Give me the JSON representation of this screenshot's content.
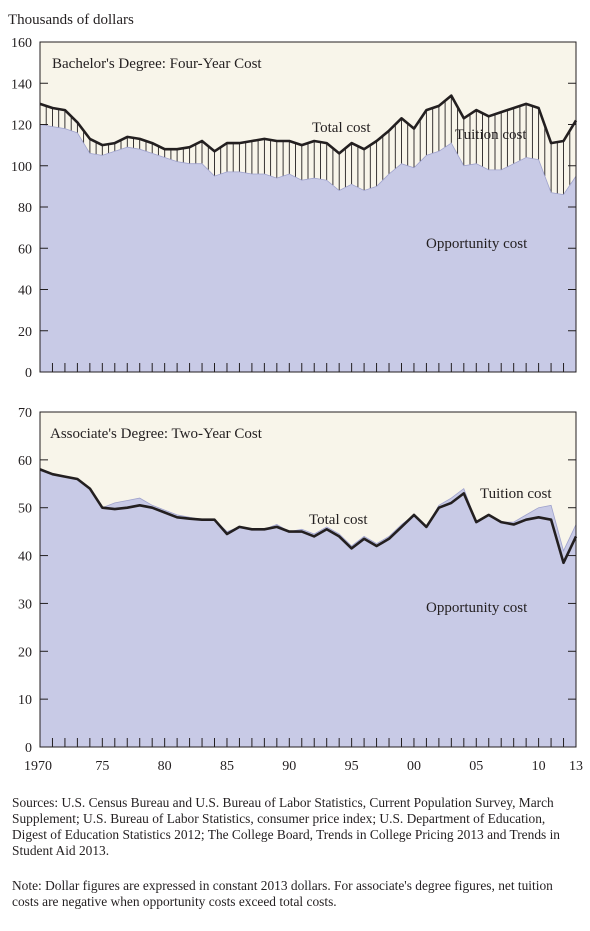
{
  "figure": {
    "y_unit_label": "Thousands of dollars",
    "x_tick_labels": [
      "1970",
      "75",
      "80",
      "85",
      "90",
      "95",
      "00",
      "05",
      "10",
      "13"
    ]
  },
  "colors": {
    "background": "#f8f5ea",
    "opportunity_fill": "#c8cae6",
    "total_line": "#231f20",
    "hatch_line": "#231f20"
  },
  "chart_data": [
    {
      "type": "area",
      "title": "Bachelor's Degree: Four-Year Cost",
      "ylabel": "Thousands of dollars",
      "ylim": [
        0,
        160
      ],
      "yticks": [
        0,
        20,
        40,
        60,
        80,
        100,
        120,
        140,
        160
      ],
      "grid": false,
      "annotations": [
        "Total cost",
        "Tuition cost",
        "Opportunity cost"
      ],
      "x": [
        1970,
        1971,
        1972,
        1973,
        1974,
        1975,
        1976,
        1977,
        1978,
        1979,
        1980,
        1981,
        1982,
        1983,
        1984,
        1985,
        1986,
        1987,
        1988,
        1989,
        1990,
        1991,
        1992,
        1993,
        1994,
        1995,
        1996,
        1997,
        1998,
        1999,
        2000,
        2001,
        2002,
        2003,
        2004,
        2005,
        2006,
        2007,
        2008,
        2009,
        2010,
        2011,
        2012,
        2013
      ],
      "series": [
        {
          "name": "Total cost",
          "values": [
            130,
            128,
            127,
            121,
            113,
            110,
            111,
            114,
            113,
            111,
            108,
            108,
            109,
            112,
            107,
            111,
            111,
            112,
            113,
            112,
            112,
            110,
            112,
            111,
            106,
            111,
            108,
            112,
            117,
            123,
            118,
            127,
            129,
            134,
            123,
            127,
            124,
            126,
            128,
            130,
            128,
            111,
            112,
            122
          ]
        },
        {
          "name": "Opportunity cost",
          "values": [
            120,
            119,
            118,
            116,
            106,
            105,
            107,
            109,
            108,
            106,
            104,
            102,
            101,
            101,
            95,
            97,
            97,
            96,
            96,
            94,
            96,
            93,
            94,
            93,
            88,
            91,
            88,
            90,
            96,
            101,
            99,
            105,
            107,
            111,
            100,
            101,
            98,
            98,
            101,
            104,
            103,
            87,
            86,
            95
          ]
        }
      ]
    },
    {
      "type": "area",
      "title": "Associate's Degree: Two-Year Cost",
      "ylabel": "Thousands of dollars",
      "ylim": [
        0,
        70
      ],
      "yticks": [
        0,
        10,
        20,
        30,
        40,
        50,
        60,
        70
      ],
      "grid": false,
      "annotations": [
        "Total cost",
        "Tuition cost",
        "Opportunity cost"
      ],
      "x": [
        1970,
        1971,
        1972,
        1973,
        1974,
        1975,
        1976,
        1977,
        1978,
        1979,
        1980,
        1981,
        1982,
        1983,
        1984,
        1985,
        1986,
        1987,
        1988,
        1989,
        1990,
        1991,
        1992,
        1993,
        1994,
        1995,
        1996,
        1997,
        1998,
        1999,
        2000,
        2001,
        2002,
        2003,
        2004,
        2005,
        2006,
        2007,
        2008,
        2009,
        2010,
        2011,
        2012,
        2013
      ],
      "series": [
        {
          "name": "Total cost",
          "values": [
            58,
            57,
            56.5,
            56,
            54,
            50,
            49.7,
            50,
            50.5,
            50,
            49,
            48,
            47.7,
            47.5,
            47.5,
            44.5,
            46,
            45.5,
            45.5,
            46,
            45,
            45,
            44,
            45.5,
            44,
            41.5,
            43.5,
            42,
            43.5,
            46,
            48.5,
            46,
            50,
            51,
            53,
            47,
            48.5,
            47,
            46.5,
            47.5,
            48,
            47.5,
            38.5,
            44
          ]
        },
        {
          "name": "Opportunity cost",
          "values": [
            58,
            57,
            56.5,
            56,
            54,
            50,
            51,
            51.5,
            52,
            50.5,
            49.5,
            48.5,
            48,
            47.5,
            47.5,
            45,
            46,
            45.5,
            45.5,
            46.5,
            45,
            45.5,
            44.5,
            46,
            44.5,
            42,
            44,
            42.5,
            44,
            46.5,
            48.5,
            46,
            50.5,
            52,
            54,
            47,
            48.5,
            47,
            47,
            48.5,
            50,
            50.5,
            41,
            46.5
          ]
        }
      ]
    }
  ],
  "footer": {
    "sources": "Sources: U.S. Census Bureau and U.S. Bureau of Labor Statistics, Current Population Survey, March Supplement; U.S. Bureau of Labor Statistics, consumer price index; U.S. Department of Education, Digest of Education Statistics 2012; The College Board, Trends in College Pricing 2013 and Trends in Student Aid 2013.",
    "note": "Note: Dollar figures are expressed in constant 2013 dollars. For associate's degree figures, net tuition costs are negative when opportunity costs exceed total costs."
  }
}
